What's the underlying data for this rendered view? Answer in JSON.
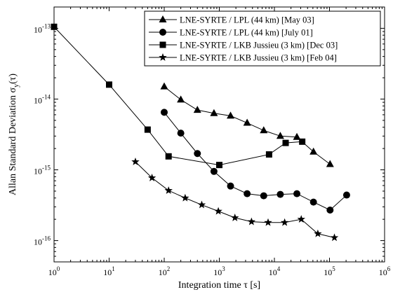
{
  "chart_data": {
    "type": "line",
    "xlabel": "Integration time τ [s]",
    "ylabel": "Allan Standard Deviation σ",
    "ylabel_sub": "y",
    "ylabel_suffix": "(τ)",
    "x_scale": "log",
    "y_scale": "log",
    "xlim": [
      1,
      1000000
    ],
    "ylim": [
      5e-17,
      2e-13
    ],
    "x_ticks": [
      {
        "value": 1,
        "base": "10",
        "exp": "0"
      },
      {
        "value": 10,
        "base": "10",
        "exp": "1"
      },
      {
        "value": 100,
        "base": "10",
        "exp": "2"
      },
      {
        "value": 1000,
        "base": "10",
        "exp": "3"
      },
      {
        "value": 10000,
        "base": "10",
        "exp": "4"
      },
      {
        "value": 100000,
        "base": "10",
        "exp": "5"
      },
      {
        "value": 1000000,
        "base": "10",
        "exp": "6"
      }
    ],
    "y_ticks": [
      {
        "value": 1e-16,
        "base": "10",
        "exp": "-16"
      },
      {
        "value": 1e-15,
        "base": "10",
        "exp": "-15"
      },
      {
        "value": 1e-14,
        "base": "10",
        "exp": "-14"
      },
      {
        "value": 1e-13,
        "base": "10",
        "exp": "-13"
      }
    ],
    "legend_position": "top-right",
    "grid": false,
    "series": [
      {
        "name": "LNE-SYRTE / LPL (44 km) [May 03]",
        "marker": "triangle",
        "x": [
          100,
          200,
          400,
          800,
          1600,
          3200,
          6400,
          12800,
          25600,
          51200,
          102400
        ],
        "y": [
          1.5e-14,
          9.8e-15,
          7e-15,
          6.3e-15,
          5.8e-15,
          4.6e-15,
          3.6e-15,
          3e-15,
          2.9e-15,
          1.8e-15,
          1.2e-15
        ]
      },
      {
        "name": "LNE-SYRTE / LPL (44 km) [July 01]",
        "marker": "circle",
        "x": [
          100,
          200,
          400,
          800,
          1600,
          3200,
          6400,
          12800,
          25600,
          51200,
          102400,
          204800
        ],
        "y": [
          6.5e-15,
          3.3e-15,
          1.7e-15,
          9.5e-16,
          5.9e-16,
          4.6e-16,
          4.3e-16,
          4.5e-16,
          4.6e-16,
          3.5e-16,
          2.7e-16,
          4.4e-16
        ]
      },
      {
        "name": "LNE-SYRTE / LKB Jussieu (3 km) [Dec 03]",
        "marker": "square",
        "x": [
          1,
          10,
          50,
          120,
          1000,
          8000,
          16000,
          32000
        ],
        "y": [
          1.05e-13,
          1.6e-14,
          3.7e-15,
          1.55e-15,
          1.17e-15,
          1.65e-15,
          2.4e-15,
          2.5e-15
        ]
      },
      {
        "name": "LNE-SYRTE / LKB Jussieu (3 km) [Feb 04]",
        "marker": "star",
        "x": [
          30,
          60,
          120,
          240,
          480,
          960,
          1920,
          3840,
          7680,
          15360,
          30720,
          61440,
          122880
        ],
        "y": [
          1.3e-15,
          7.7e-16,
          5.1e-16,
          4e-16,
          3.2e-16,
          2.6e-16,
          2.1e-16,
          1.85e-16,
          1.8e-16,
          1.8e-16,
          2e-16,
          1.25e-16,
          1.1e-16
        ]
      }
    ]
  }
}
